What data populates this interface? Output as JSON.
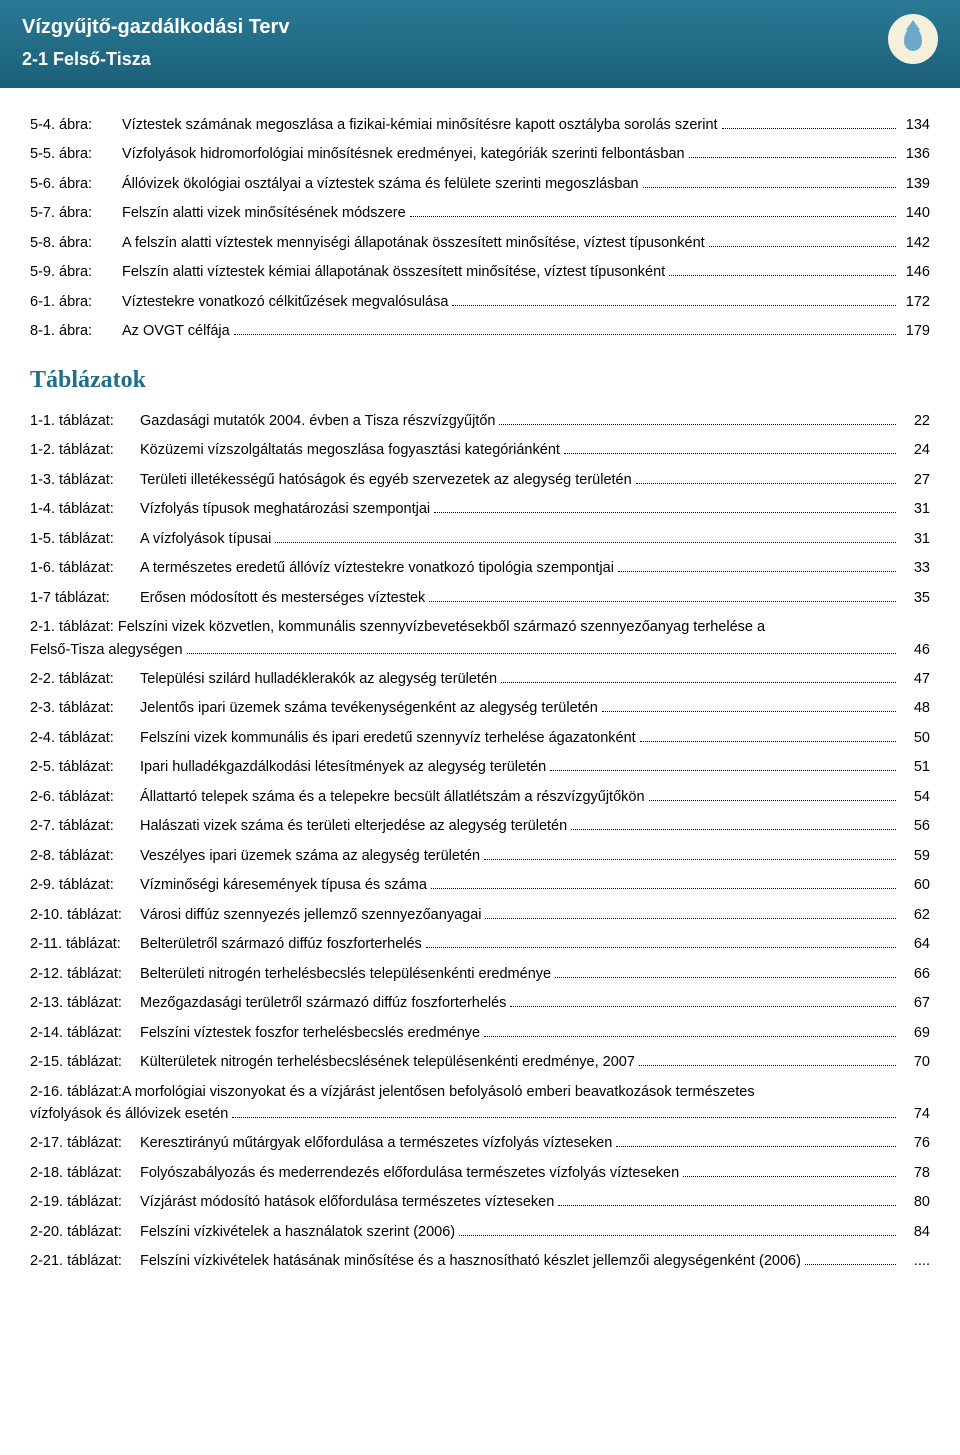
{
  "colors": {
    "header_bg_top": "#2a7a96",
    "header_bg_bottom": "#1a5f78",
    "header_text": "#ffffff",
    "section_head": "#1f6f8b",
    "body_text": "#000000",
    "emblem_bg": "#f5f0dc",
    "drop_color": "#6da9c9",
    "page_bg": "#ffffff",
    "dot_leader": "#000000"
  },
  "typography": {
    "body_font": "Arial",
    "body_size_pt": 11,
    "header_title_size_pt": 15,
    "section_head_size_pt": 18,
    "section_head_font": "Georgia"
  },
  "header": {
    "title": "Vízgyűjtő-gazdálkodási Terv",
    "subtitle": "2-1 Felső-Tisza"
  },
  "figures": [
    {
      "label": "5-4. ábra:",
      "desc": "Víztestek számának megoszlása a fizikai-kémiai minősítésre kapott osztályba sorolás szerint",
      "page": "134"
    },
    {
      "label": "5-5. ábra:",
      "desc": "Vízfolyások hidromorfológiai minősítésnek eredményei, kategóriák szerinti felbontásban",
      "page": "136"
    },
    {
      "label": "5-6. ábra:",
      "desc": "Állóvizek ökológiai osztályai a víztestek száma és felülete szerinti megoszlásban",
      "page": "139"
    },
    {
      "label": "5-7. ábra:",
      "desc": "Felszín alatti vizek minősítésének módszere",
      "page": "140"
    },
    {
      "label": "5-8. ábra:",
      "desc": "A felszín alatti víztestek mennyiségi állapotának összesített minősítése, víztest típusonként",
      "page": "142"
    },
    {
      "label": "5-9. ábra:",
      "desc": "Felszín alatti víztestek kémiai állapotának összesített minősítése, víztest típusonként",
      "page": "146"
    },
    {
      "label": "6-1. ábra:",
      "desc": "Víztestekre vonatkozó célkitűzések megvalósulása",
      "page": "172"
    },
    {
      "label": "8-1. ábra:",
      "desc": "Az OVGT célfája",
      "page": "179"
    }
  ],
  "tables_heading": "Táblázatok",
  "tables": [
    {
      "label": "1-1. táblázat:",
      "desc": "Gazdasági mutatók 2004. évben a Tisza részvízgyűjtőn",
      "page": "22"
    },
    {
      "label": "1-2. táblázat:",
      "desc": "Közüzemi vízszolgáltatás megoszlása fogyasztási kategóriánként",
      "page": "24"
    },
    {
      "label": "1-3. táblázat:",
      "desc": "Területi illetékességű hatóságok és egyéb szervezetek az alegység területén",
      "page": "27"
    },
    {
      "label": "1-4. táblázat:",
      "desc": "Vízfolyás típusok meghatározási szempontjai",
      "page": "31"
    },
    {
      "label": "1-5. táblázat:",
      "desc": "A vízfolyások típusai",
      "page": "31"
    },
    {
      "label": "1-6. táblázat:",
      "desc": "A természetes eredetű állóvíz víztestekre vonatkozó tipológia szempontjai",
      "page": "33"
    },
    {
      "label": "1-7 táblázat:",
      "desc": "Erősen módosított és mesterséges víztestek",
      "page": "35"
    },
    {
      "label": "2-1. táblázat:",
      "desc_line1": "Felszíni vizek közvetlen, kommunális szennyvízbevetésekből származó szennyezőanyag terhelése a",
      "desc_line2": "Felső-Tisza alegységen",
      "page": "46",
      "multiline": true
    },
    {
      "label": "2-2. táblázat:",
      "desc": "Települési szilárd hulladéklerakók az alegység területén",
      "page": "47"
    },
    {
      "label": "2-3. táblázat:",
      "desc": "Jelentős ipari üzemek száma tevékenységenként az alegység területén",
      "page": "48"
    },
    {
      "label": "2-4. táblázat:",
      "desc": "Felszíni vizek kommunális és ipari eredetű szennyvíz terhelése ágazatonként",
      "page": "50"
    },
    {
      "label": "2-5. táblázat:",
      "desc": "Ipari hulladékgazdálkodási létesítmények az alegység területén",
      "page": "51"
    },
    {
      "label": "2-6. táblázat:",
      "desc": "Állattartó telepek száma és a telepekre becsült állatlétszám a részvízgyűjtőkön",
      "page": "54"
    },
    {
      "label": "2-7. táblázat:",
      "desc": "Halászati vizek száma és területi elterjedése az alegység területén",
      "page": "56"
    },
    {
      "label": "2-8. táblázat:",
      "desc": "Veszélyes ipari üzemek száma az alegység területén",
      "page": "59"
    },
    {
      "label": "2-9. táblázat:",
      "desc": "Vízminőségi káresemények típusa és száma",
      "page": "60"
    },
    {
      "label": "2-10. táblázat:",
      "desc": "Városi diffúz szennyezés jellemző szennyezőanyagai",
      "page": "62"
    },
    {
      "label": "2-11. táblázat:",
      "desc": "Belterületről származó diffúz foszforterhelés",
      "page": "64"
    },
    {
      "label": "2-12. táblázat:",
      "desc": "Belterületi nitrogén terhelésbecslés településenkénti eredménye",
      "page": "66"
    },
    {
      "label": "2-13. táblázat:",
      "desc": "Mezőgazdasági területről származó diffúz foszforterhelés",
      "page": "67"
    },
    {
      "label": "2-14. táblázat:",
      "desc": "Felszíni víztestek foszfor terhelésbecslés eredménye",
      "page": "69"
    },
    {
      "label": "2-15. táblázat:",
      "desc": "Külterületek nitrogén terhelésbecslésének településenkénti eredménye, 2007",
      "page": "70"
    },
    {
      "label": "2-16. táblázat:",
      "desc_line1": "A morfológiai viszonyokat és a vízjárást jelentősen befolyásoló emberi beavatkozások természetes",
      "desc_line2": "vízfolyások és állóvizek esetén",
      "page": "74",
      "multiline": true,
      "nogap": true
    },
    {
      "label": "2-17. táblázat:",
      "desc": "Keresztirányú műtárgyak előfordulása a természetes vízfolyás vízteseken",
      "page": "76"
    },
    {
      "label": "2-18. táblázat:",
      "desc": "Folyószabályozás és mederrendezés előfordulása természetes vízfolyás vízteseken",
      "page": "78"
    },
    {
      "label": "2-19. táblázat:",
      "desc": "Vízjárást módosító hatások előfordulása természetes vízteseken",
      "page": "80"
    },
    {
      "label": "2-20. táblázat:",
      "desc": "Felszíni vízkivételek a használatok szerint (2006)",
      "page": "84"
    },
    {
      "label": "2-21. táblázat:",
      "desc": "Felszíni vízkivételek hatásának minősítése és a hasznosítható készlet jellemzői alegységenként (2006)",
      "page": "...."
    }
  ]
}
